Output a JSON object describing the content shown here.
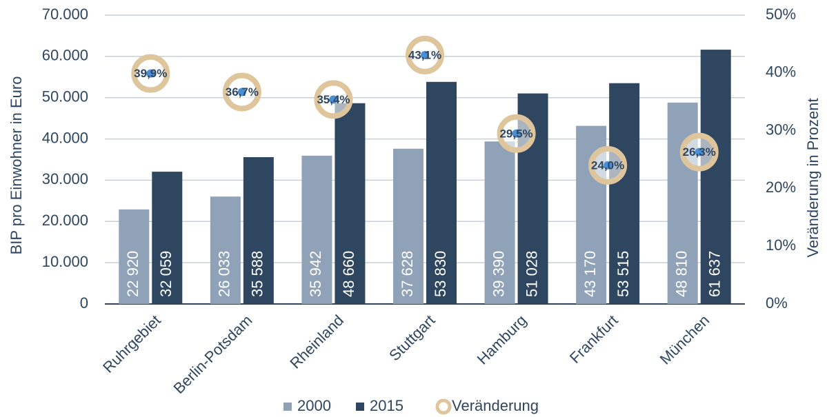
{
  "chart_data": {
    "type": "bar",
    "categories": [
      "Ruhrgebiet",
      "Berlin-Potsdam",
      "Rheinland",
      "Stuttgart",
      "Hamburg",
      "Frankfurt",
      "München"
    ],
    "series": [
      {
        "name": "2000",
        "color": "#8fa2b7",
        "values": [
          22920,
          26033,
          35942,
          37628,
          39390,
          43170,
          48810
        ],
        "value_labels": [
          "22 920",
          "26 033",
          "35 942",
          "37 628",
          "39 390",
          "43 170",
          "48 810"
        ]
      },
      {
        "name": "2015",
        "color": "#2f4660",
        "values": [
          32059,
          35588,
          48660,
          53830,
          51028,
          53515,
          61637
        ],
        "value_labels": [
          "32 059",
          "35 588",
          "48 660",
          "53 830",
          "51 028",
          "53 515",
          "61 637"
        ]
      },
      {
        "name": "Veränderung",
        "type": "scatter",
        "axis": "y2",
        "color": "#dfc59c",
        "dot_color": "#4a8fd6",
        "values": [
          39.9,
          36.7,
          35.4,
          43.1,
          29.5,
          24.0,
          26.3
        ],
        "value_labels": [
          "39,9%",
          "36,7%",
          "35,4%",
          "43,1%",
          "29,5%",
          "24,0%",
          "26,3%"
        ]
      }
    ],
    "ylabel": "BIP pro Einwohner in Euro",
    "y2label": "Veränderung in Prozent",
    "ylim": [
      0,
      70000
    ],
    "yticks": [
      0,
      {
        "value": 10000,
        "label": "10.000"
      },
      {
        "value": 20000,
        "label": "20.000"
      },
      {
        "value": 30000,
        "label": "30.000"
      },
      {
        "value": 40000,
        "label": "40.000"
      },
      {
        "value": 50000,
        "label": "50.000"
      },
      {
        "value": 60000,
        "label": "60.000"
      },
      {
        "value": 70000,
        "label": "70.000"
      }
    ],
    "y2lim": [
      0,
      50
    ],
    "y2ticks": [
      {
        "value": 0,
        "label": "0%"
      },
      {
        "value": 10,
        "label": "10%"
      },
      {
        "value": 20,
        "label": "20%"
      },
      {
        "value": 30,
        "label": "30%"
      },
      {
        "value": 40,
        "label": "40%"
      },
      {
        "value": 50,
        "label": "50%"
      }
    ],
    "grid": true,
    "legend": "bottom"
  }
}
